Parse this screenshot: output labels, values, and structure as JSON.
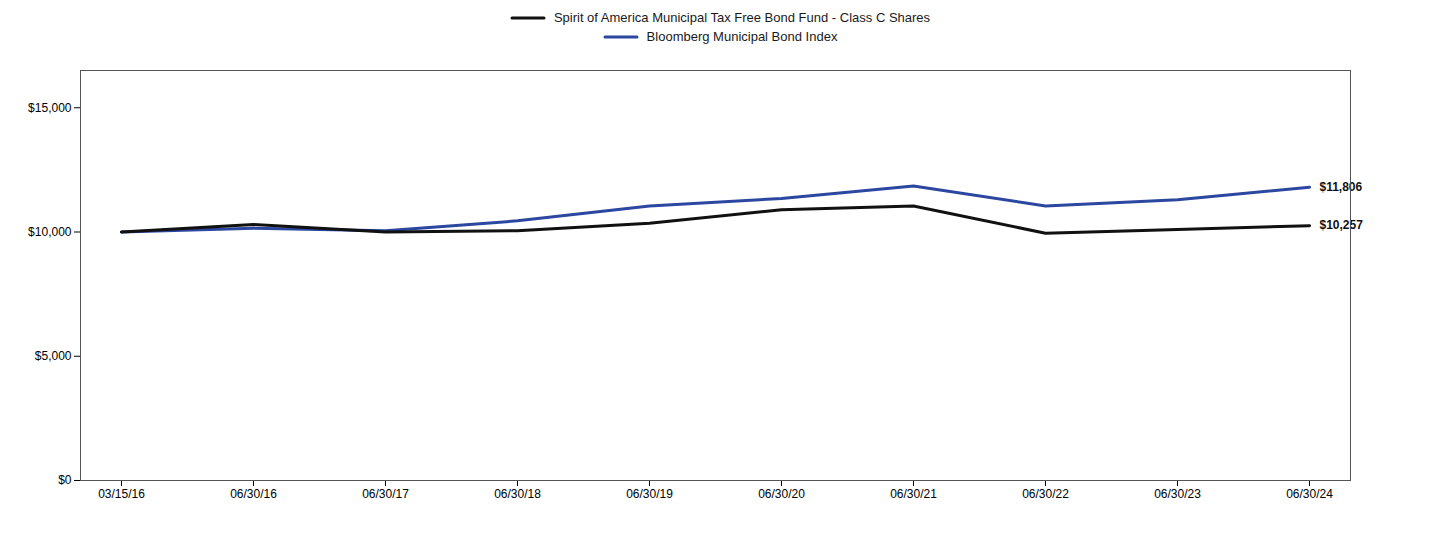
{
  "chart_data": {
    "type": "line",
    "categories": [
      "03/15/16",
      "06/30/16",
      "06/30/17",
      "06/30/18",
      "06/30/19",
      "06/30/20",
      "06/30/21",
      "06/30/22",
      "06/30/23",
      "06/30/24"
    ],
    "series": [
      {
        "name": "Spirit of America Municipal Tax Free Bond Fund - Class C Shares",
        "color": "#111111",
        "values": [
          10000,
          10300,
          10000,
          10050,
          10350,
          10900,
          11050,
          9950,
          10100,
          10257
        ]
      },
      {
        "name": "Bloomberg Municipal Bond Index",
        "color": "#2b47a0",
        "values": [
          10000,
          10150,
          10050,
          10450,
          11050,
          11350,
          11850,
          11050,
          11300,
          11806
        ]
      }
    ],
    "annotations": [
      {
        "text": "$11,806",
        "x": "06/30/24",
        "y": 11806
      },
      {
        "text": "$10,257",
        "x": "06/30/24",
        "y": 10257
      }
    ],
    "ylim": [
      0,
      16500
    ],
    "yticks": [
      {
        "value": 0,
        "label": "$0"
      },
      {
        "value": 5000,
        "label": "$5,000"
      },
      {
        "value": 10000,
        "label": "$10,000"
      },
      {
        "value": 15000,
        "label": "$15,000"
      }
    ],
    "grid": false,
    "legend": "top"
  }
}
